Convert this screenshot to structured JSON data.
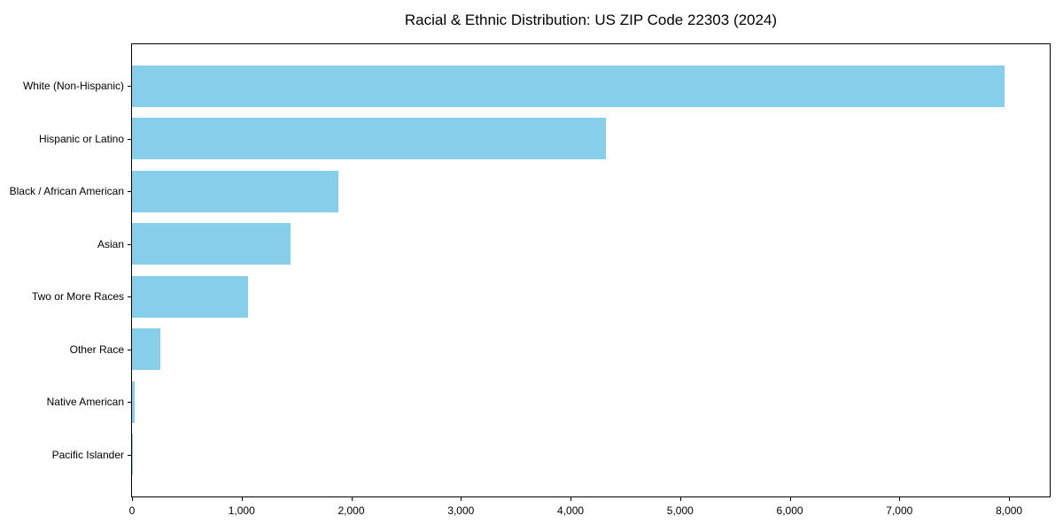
{
  "figure": {
    "background": "#ffffff"
  },
  "chart_data": {
    "type": "bar",
    "orientation": "horizontal",
    "title": "Racial & Ethnic Distribution: US ZIP Code 22303 (2024)",
    "categories": [
      "White (Non-Hispanic)",
      "Hispanic or Latino",
      "Black / African American",
      "Asian",
      "Two or More Races",
      "Other Race",
      "Native American",
      "Pacific Islander"
    ],
    "values": [
      7960,
      4320,
      1880,
      1450,
      1055,
      260,
      25,
      5
    ],
    "xlabel": "",
    "ylabel": "",
    "xlim": [
      0,
      8371
    ],
    "xticks": [
      0,
      1000,
      2000,
      3000,
      4000,
      5000,
      6000,
      7000,
      8000
    ],
    "xtick_labels": [
      "0",
      "1,000",
      "2,000",
      "3,000",
      "4,000",
      "5,000",
      "6,000",
      "7,000",
      "8,000"
    ],
    "bar_color": "#87ceeb",
    "axis_color": "#000000",
    "text_color": "#000000",
    "grid": false,
    "legend": "none"
  }
}
